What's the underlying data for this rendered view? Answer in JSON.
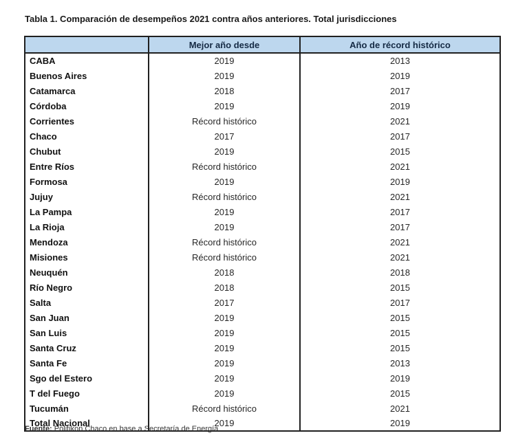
{
  "title": "Tabla 1. Comparación de desempeños 2021 contra años anteriores. Total jurisdicciones",
  "colors": {
    "header_bg": "#BDD7EE",
    "border": "#1f1f1f",
    "header_text": "#152A44"
  },
  "table": {
    "columns": [
      "",
      "Mejor año desde",
      "Año de récord histórico"
    ],
    "rows": [
      {
        "jurisdiction": "CABA",
        "mejor_ano_desde": "2019",
        "ano_record_historico": "2013"
      },
      {
        "jurisdiction": "Buenos Aires",
        "mejor_ano_desde": "2019",
        "ano_record_historico": "2019"
      },
      {
        "jurisdiction": "Catamarca",
        "mejor_ano_desde": "2018",
        "ano_record_historico": "2017"
      },
      {
        "jurisdiction": "Córdoba",
        "mejor_ano_desde": "2019",
        "ano_record_historico": "2019"
      },
      {
        "jurisdiction": "Corrientes",
        "mejor_ano_desde": "Récord histórico",
        "ano_record_historico": "2021"
      },
      {
        "jurisdiction": "Chaco",
        "mejor_ano_desde": "2017",
        "ano_record_historico": "2017"
      },
      {
        "jurisdiction": "Chubut",
        "mejor_ano_desde": "2019",
        "ano_record_historico": "2015"
      },
      {
        "jurisdiction": "Entre Ríos",
        "mejor_ano_desde": "Récord histórico",
        "ano_record_historico": "2021"
      },
      {
        "jurisdiction": "Formosa",
        "mejor_ano_desde": "2019",
        "ano_record_historico": "2019"
      },
      {
        "jurisdiction": "Jujuy",
        "mejor_ano_desde": "Récord histórico",
        "ano_record_historico": "2021"
      },
      {
        "jurisdiction": "La Pampa",
        "mejor_ano_desde": "2019",
        "ano_record_historico": "2017"
      },
      {
        "jurisdiction": "La Rioja",
        "mejor_ano_desde": "2019",
        "ano_record_historico": "2017"
      },
      {
        "jurisdiction": "Mendoza",
        "mejor_ano_desde": "Récord histórico",
        "ano_record_historico": "2021"
      },
      {
        "jurisdiction": "Misiones",
        "mejor_ano_desde": "Récord histórico",
        "ano_record_historico": "2021"
      },
      {
        "jurisdiction": "Neuquén",
        "mejor_ano_desde": "2018",
        "ano_record_historico": "2018"
      },
      {
        "jurisdiction": "Río Negro",
        "mejor_ano_desde": "2018",
        "ano_record_historico": "2015"
      },
      {
        "jurisdiction": "Salta",
        "mejor_ano_desde": "2017",
        "ano_record_historico": "2017"
      },
      {
        "jurisdiction": "San Juan",
        "mejor_ano_desde": "2019",
        "ano_record_historico": "2015"
      },
      {
        "jurisdiction": "San Luis",
        "mejor_ano_desde": "2019",
        "ano_record_historico": "2015"
      },
      {
        "jurisdiction": "Santa Cruz",
        "mejor_ano_desde": "2019",
        "ano_record_historico": "2015"
      },
      {
        "jurisdiction": "Santa Fe",
        "mejor_ano_desde": "2019",
        "ano_record_historico": "2013"
      },
      {
        "jurisdiction": "Sgo del Estero",
        "mejor_ano_desde": "2019",
        "ano_record_historico": "2019"
      },
      {
        "jurisdiction": "T del Fuego",
        "mejor_ano_desde": "2019",
        "ano_record_historico": "2015"
      },
      {
        "jurisdiction": "Tucumán",
        "mejor_ano_desde": "Récord histórico",
        "ano_record_historico": "2021"
      },
      {
        "jurisdiction": "Total Nacional",
        "mejor_ano_desde": "2019",
        "ano_record_historico": "2019"
      }
    ]
  },
  "source": {
    "label": "Fuente:",
    "text": " Politikon Chaco en base a Secretaría de Energía"
  }
}
